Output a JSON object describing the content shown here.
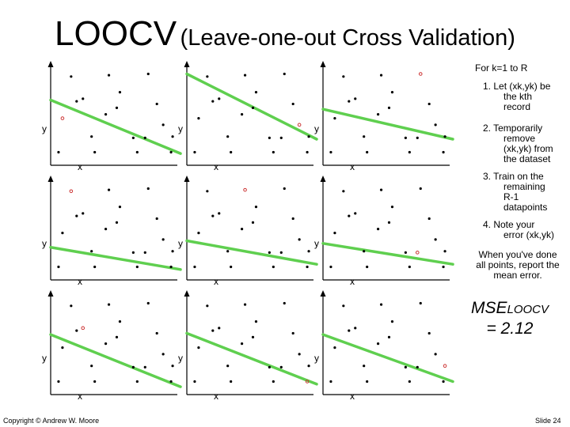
{
  "title": {
    "main": "LOOCV",
    "sub": "(Leave-one-out Cross Validation)"
  },
  "axis_labels": {
    "x": "x",
    "y": "y"
  },
  "steps": {
    "header": "For k=1 to R",
    "step1": {
      "a": "1. Let (xk,yk) be",
      "b": "the kth",
      "c": "record"
    },
    "step2": {
      "a": "2. Temporarily",
      "b": "remove",
      "c": "(xk,yk) from",
      "d": "the dataset"
    },
    "step3": {
      "a": "3. Train on the",
      "b": "remaining",
      "c": "R-1",
      "d": "datapoints"
    },
    "step4": {
      "a": "4. Note your",
      "b": "error (xk,yk)"
    },
    "report": "When you've done all points, report the mean error."
  },
  "mse": {
    "prefix": "MSE",
    "subscript": "LOOCV",
    "value": "= 2.12"
  },
  "footer": {
    "copyright": "Copyright © Andrew W. Moore",
    "slide": "Slide 24"
  },
  "colors": {
    "fit_line": "#5fcf4f",
    "held_out_point": "#cc3333",
    "point": "#000000"
  },
  "chart_data": {
    "type": "scatter",
    "points": [
      {
        "x": 1.0,
        "y": 1.0
      },
      {
        "x": 1.5,
        "y": 3.6
      },
      {
        "x": 2.6,
        "y": 6.8
      },
      {
        "x": 3.3,
        "y": 4.9
      },
      {
        "x": 4.1,
        "y": 5.1
      },
      {
        "x": 5.2,
        "y": 2.2
      },
      {
        "x": 5.6,
        "y": 1.0
      },
      {
        "x": 7.0,
        "y": 3.9
      },
      {
        "x": 7.4,
        "y": 6.9
      },
      {
        "x": 8.4,
        "y": 4.4
      },
      {
        "x": 8.8,
        "y": 5.6
      },
      {
        "x": 10.5,
        "y": 2.1
      },
      {
        "x": 11.0,
        "y": 1.0
      },
      {
        "x": 12.0,
        "y": 2.1
      },
      {
        "x": 12.4,
        "y": 7.0
      },
      {
        "x": 13.5,
        "y": 4.7
      },
      {
        "x": 14.3,
        "y": 3.1
      },
      {
        "x": 15.3,
        "y": 1.0
      },
      {
        "x": 15.5,
        "y": 2.2
      }
    ],
    "xlim": [
      0,
      16.5
    ],
    "ylim": [
      0,
      8
    ],
    "panels": [
      {
        "held_out": 1,
        "fit": [
          [
            0,
            5.0
          ],
          [
            16.5,
            0.9
          ]
        ]
      },
      {
        "held_out": 16,
        "fit": [
          [
            0,
            7.0
          ],
          [
            16.5,
            2.0
          ]
        ]
      },
      {
        "held_out": 14,
        "fit": [
          [
            0,
            4.3
          ],
          [
            16.5,
            2.0
          ]
        ]
      },
      {
        "held_out": 2,
        "fit": [
          [
            0,
            2.5
          ],
          [
            16.5,
            0.8
          ]
        ]
      },
      {
        "held_out": 8,
        "fit": [
          [
            0,
            3.0
          ],
          [
            16.5,
            1.2
          ]
        ]
      },
      {
        "held_out": 13,
        "fit": [
          [
            0,
            2.8
          ],
          [
            16.5,
            1.2
          ]
        ]
      },
      {
        "held_out": 4,
        "fit": [
          [
            0,
            4.6
          ],
          [
            16.5,
            0.6
          ]
        ]
      },
      {
        "held_out": 17,
        "fit": [
          [
            0,
            4.7
          ],
          [
            16.5,
            0.8
          ]
        ]
      },
      {
        "held_out": 18,
        "fit": [
          [
            0,
            4.6
          ],
          [
            16.5,
            1.0
          ]
        ]
      }
    ]
  }
}
